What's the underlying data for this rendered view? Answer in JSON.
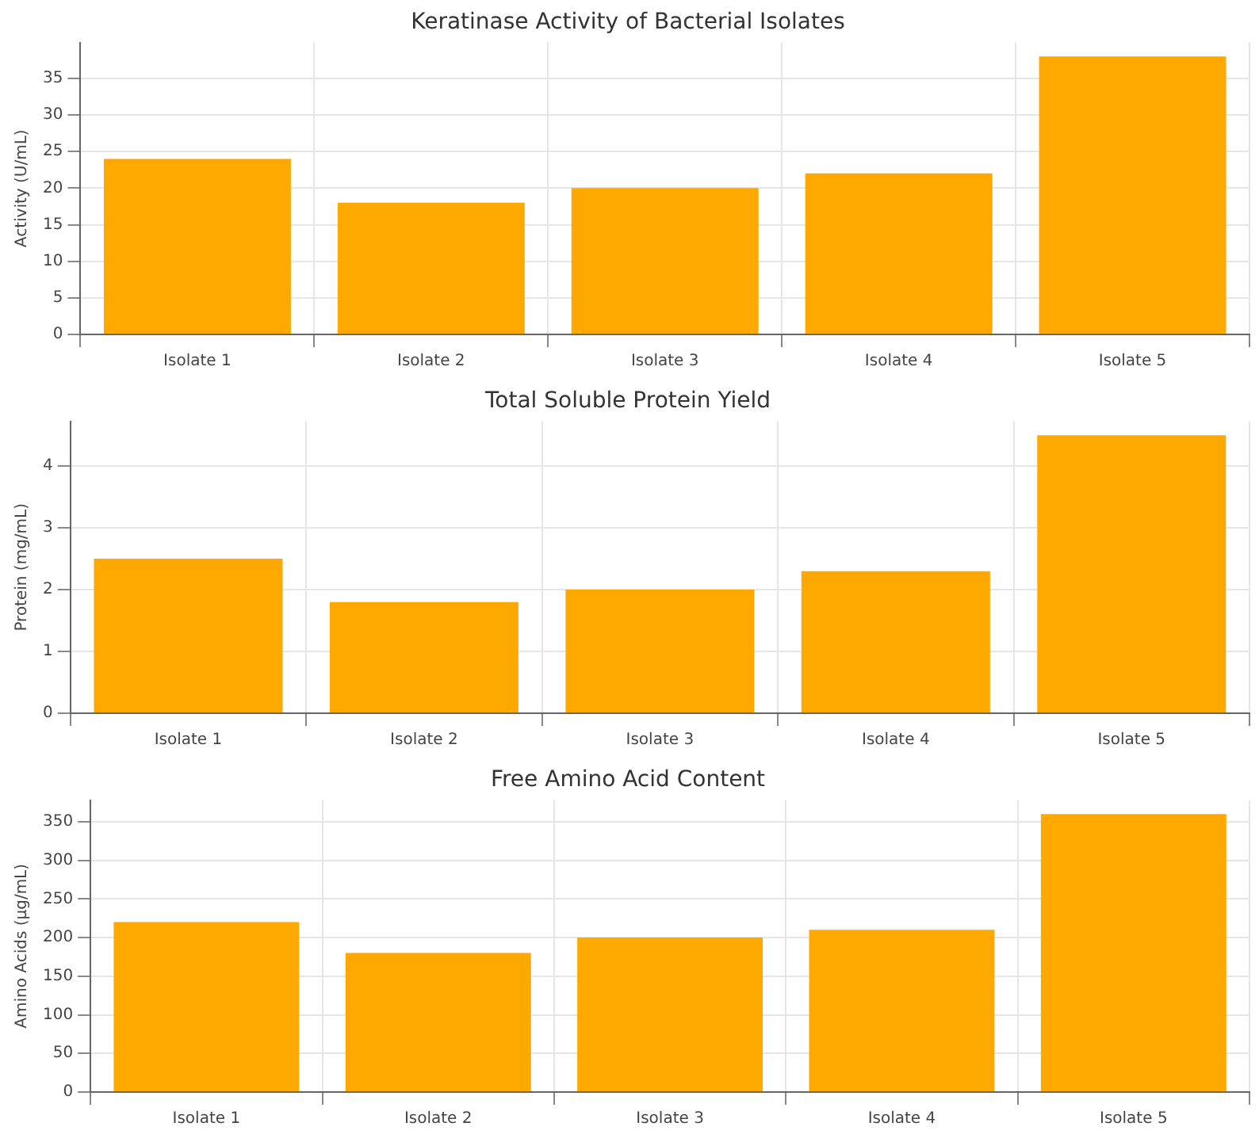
{
  "chart_data": [
    {
      "type": "bar",
      "title": "Keratinase Activity of Bacterial Isolates",
      "ylabel": "Activity (U/mL)",
      "categories": [
        "Isolate 1",
        "Isolate 2",
        "Isolate 3",
        "Isolate 4",
        "Isolate 5"
      ],
      "values": [
        24,
        18,
        20,
        22,
        38
      ],
      "color": "#ffa800",
      "ylim": [
        0,
        39.9
      ],
      "yticks": [
        0,
        5,
        10,
        15,
        20,
        25,
        30,
        35
      ],
      "grid": true
    },
    {
      "type": "bar",
      "title": "Total Soluble Protein Yield",
      "ylabel": "Protein (mg/mL)",
      "categories": [
        "Isolate 1",
        "Isolate 2",
        "Isolate 3",
        "Isolate 4",
        "Isolate 5"
      ],
      "values": [
        2.5,
        1.8,
        2.0,
        2.3,
        4.5
      ],
      "color": "#ffa800",
      "ylim": [
        0,
        4.725
      ],
      "yticks": [
        0,
        1,
        2,
        3,
        4
      ],
      "grid": true
    },
    {
      "type": "bar",
      "title": "Free Amino Acid Content",
      "ylabel": "Amino Acids (µg/mL)",
      "categories": [
        "Isolate 1",
        "Isolate 2",
        "Isolate 3",
        "Isolate 4",
        "Isolate 5"
      ],
      "values": [
        220,
        180,
        200,
        210,
        360
      ],
      "color": "#ffa800",
      "ylim": [
        0,
        378
      ],
      "yticks": [
        0,
        50,
        100,
        150,
        200,
        250,
        300,
        350
      ],
      "grid": true
    }
  ]
}
